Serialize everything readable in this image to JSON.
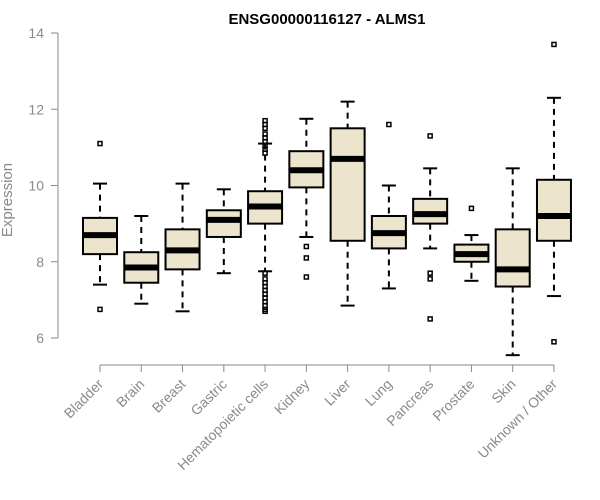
{
  "chart_data": {
    "type": "boxplot",
    "title": "ENSG00000116127 - ALMS1",
    "xlabel": "",
    "ylabel": "Expression",
    "ylim": [
      5.3,
      14.3
    ],
    "yticks": [
      6,
      8,
      10,
      12,
      14
    ],
    "categories": [
      "Bladder",
      "Brain",
      "Breast",
      "Gastric",
      "Hematopoietic cells",
      "Kidney",
      "Liver",
      "Lung",
      "Pancreas",
      "Prostate",
      "Skin",
      "Unknown / Other"
    ],
    "boxes": [
      {
        "name": "Bladder",
        "min": 7.4,
        "q1": 8.2,
        "median": 8.7,
        "q3": 9.15,
        "max": 10.05,
        "outliers": [
          11.1,
          6.75
        ]
      },
      {
        "name": "Brain",
        "min": 6.9,
        "q1": 7.45,
        "median": 7.85,
        "q3": 8.25,
        "max": 9.2,
        "outliers": []
      },
      {
        "name": "Breast",
        "min": 6.7,
        "q1": 7.8,
        "median": 8.3,
        "q3": 8.85,
        "max": 10.05,
        "outliers": []
      },
      {
        "name": "Gastric",
        "min": 7.7,
        "q1": 8.65,
        "median": 9.1,
        "q3": 9.35,
        "max": 9.9,
        "outliers": []
      },
      {
        "name": "Hematopoietic cells",
        "min": 7.75,
        "q1": 9.0,
        "median": 9.45,
        "q3": 9.85,
        "max": 11.1,
        "outliers": [
          11.7,
          11.6,
          11.5,
          11.35,
          11.25,
          11.15,
          11.05,
          10.95,
          10.85,
          7.7,
          7.55,
          7.45,
          7.35,
          7.25,
          7.15,
          7.05,
          6.95,
          6.85,
          6.75,
          6.7
        ]
      },
      {
        "name": "Kidney",
        "min": 8.65,
        "q1": 9.95,
        "median": 10.4,
        "q3": 10.9,
        "max": 11.75,
        "outliers": [
          8.4,
          8.1,
          7.6
        ]
      },
      {
        "name": "Liver",
        "min": 6.85,
        "q1": 8.55,
        "median": 10.7,
        "q3": 11.5,
        "max": 12.2,
        "outliers": []
      },
      {
        "name": "Lung",
        "min": 7.3,
        "q1": 8.35,
        "median": 8.75,
        "q3": 9.2,
        "max": 10.0,
        "outliers": [
          11.6
        ]
      },
      {
        "name": "Pancreas",
        "min": 8.35,
        "q1": 9.0,
        "median": 9.25,
        "q3": 9.65,
        "max": 10.45,
        "outliers": [
          11.3,
          7.7,
          7.55,
          6.5
        ]
      },
      {
        "name": "Prostate",
        "min": 7.5,
        "q1": 8.0,
        "median": 8.2,
        "q3": 8.45,
        "max": 8.7,
        "outliers": [
          9.4
        ]
      },
      {
        "name": "Skin",
        "min": 5.55,
        "q1": 7.35,
        "median": 7.8,
        "q3": 8.85,
        "max": 10.45,
        "outliers": []
      },
      {
        "name": "Unknown / Other",
        "min": 7.1,
        "q1": 8.55,
        "median": 9.2,
        "q3": 10.15,
        "max": 12.3,
        "outliers": [
          13.7,
          5.9
        ]
      }
    ]
  }
}
